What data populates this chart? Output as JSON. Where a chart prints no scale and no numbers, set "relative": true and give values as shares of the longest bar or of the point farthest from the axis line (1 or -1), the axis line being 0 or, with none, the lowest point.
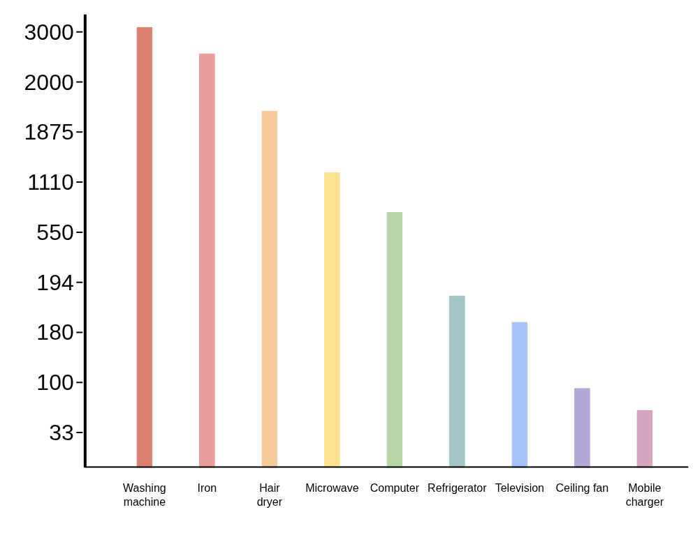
{
  "chart_data": {
    "type": "bar",
    "relative": true,
    "categories": [
      "Washing\nmachine",
      "Iron",
      "Hair\ndryer",
      "Microwave",
      "Computer",
      "Refrigerator",
      "Television",
      "Ceiling fan",
      "Mobile\ncharger"
    ],
    "values": [
      1.0,
      0.94,
      0.81,
      0.67,
      0.58,
      0.39,
      0.33,
      0.18,
      0.13
    ],
    "colors": [
      "#dc7f6e",
      "#e99c98",
      "#f7c99b",
      "#fde28f",
      "#b5d7a5",
      "#a2c4c9",
      "#a4c2f4",
      "#b4a7d6",
      "#d5a6bd"
    ],
    "annotations": [
      "3000",
      "2000",
      "1875",
      "1110",
      "550",
      "194",
      "180",
      "100",
      "33"
    ]
  }
}
